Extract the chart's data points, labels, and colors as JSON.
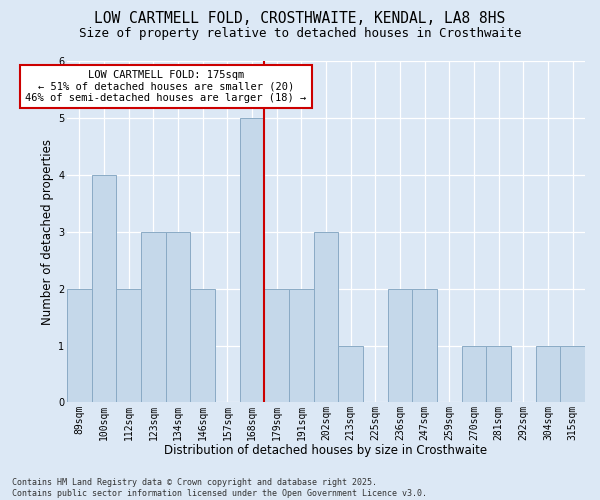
{
  "title_line1": "LOW CARTMELL FOLD, CROSTHWAITE, KENDAL, LA8 8HS",
  "title_line2": "Size of property relative to detached houses in Crosthwaite",
  "xlabel": "Distribution of detached houses by size in Crosthwaite",
  "ylabel": "Number of detached properties",
  "categories": [
    "89sqm",
    "100sqm",
    "112sqm",
    "123sqm",
    "134sqm",
    "146sqm",
    "157sqm",
    "168sqm",
    "179sqm",
    "191sqm",
    "202sqm",
    "213sqm",
    "225sqm",
    "236sqm",
    "247sqm",
    "259sqm",
    "270sqm",
    "281sqm",
    "292sqm",
    "304sqm",
    "315sqm"
  ],
  "values": [
    2,
    4,
    2,
    3,
    3,
    2,
    0,
    5,
    2,
    2,
    3,
    1,
    0,
    2,
    2,
    0,
    1,
    1,
    0,
    1,
    1
  ],
  "bar_color": "#c5d8ea",
  "bar_edge_color": "#8aaac5",
  "vline_x": 7.5,
  "vline_color": "#cc0000",
  "ylim_max": 6,
  "yticks": [
    0,
    1,
    2,
    3,
    4,
    5,
    6
  ],
  "annotation_text": "LOW CARTMELL FOLD: 175sqm\n← 51% of detached houses are smaller (20)\n46% of semi-detached houses are larger (18) →",
  "annotation_box_facecolor": "#ffffff",
  "annotation_box_edgecolor": "#cc0000",
  "bg_color": "#dce8f5",
  "footer_text": "Contains HM Land Registry data © Crown copyright and database right 2025.\nContains public sector information licensed under the Open Government Licence v3.0.",
  "title_fontsize": 10.5,
  "subtitle_fontsize": 9,
  "ylabel_fontsize": 8.5,
  "xlabel_fontsize": 8.5,
  "tick_fontsize": 7,
  "annotation_fontsize": 7.5,
  "footer_fontsize": 6
}
